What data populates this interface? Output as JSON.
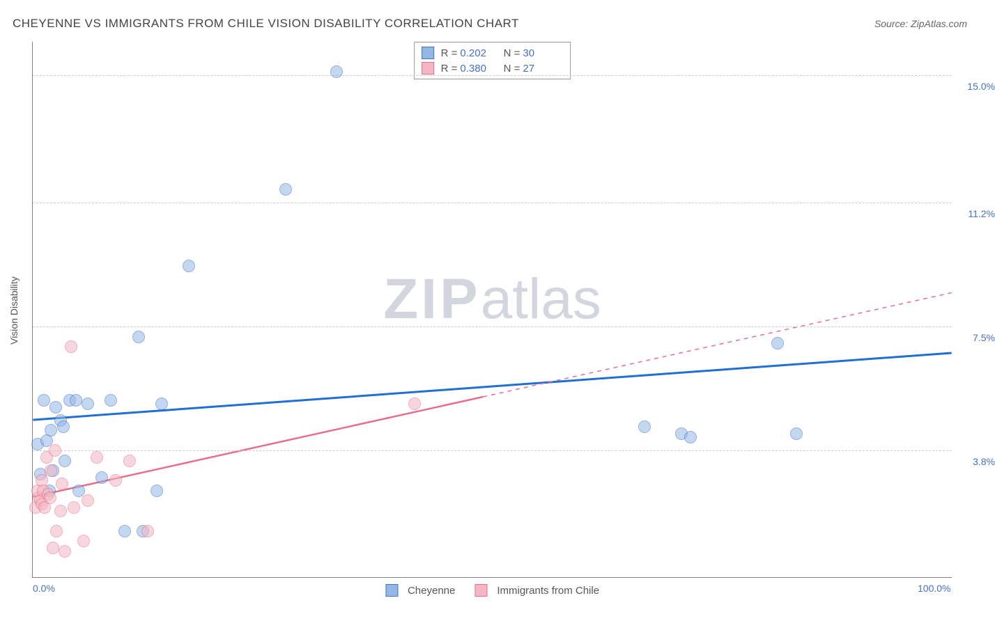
{
  "header": {
    "title": "CHEYENNE VS IMMIGRANTS FROM CHILE VISION DISABILITY CORRELATION CHART",
    "source_prefix": "Source: ",
    "source_name": "ZipAtlas.com"
  },
  "watermark": {
    "zip": "ZIP",
    "atlas": "atlas"
  },
  "chart": {
    "type": "scatter",
    "y_axis_label": "Vision Disability",
    "xlim": [
      0,
      100
    ],
    "ylim": [
      0,
      16
    ],
    "x_ticks": [
      {
        "value": 0,
        "label": "0.0%"
      },
      {
        "value": 100,
        "label": "100.0%"
      }
    ],
    "y_gridlines": [
      {
        "value": 3.8,
        "label": "3.8%"
      },
      {
        "value": 7.5,
        "label": "7.5%"
      },
      {
        "value": 11.2,
        "label": "11.2%"
      },
      {
        "value": 15.0,
        "label": "15.0%"
      }
    ],
    "background_color": "#ffffff",
    "grid_color": "#cccccc",
    "axis_color": "#808080",
    "tick_label_color": "#4472c4",
    "marker_radius": 9,
    "marker_opacity": 0.55,
    "series": [
      {
        "id": "cheyenne",
        "label": "Cheyenne",
        "R": "0.202",
        "N": "30",
        "fill": "#93b7e4",
        "stroke": "#4472c4",
        "trend": {
          "color": "#1f6fd4",
          "width": 3,
          "solid_from_x": 0,
          "solid_to_x": 100,
          "y_at_x0": 4.7,
          "y_at_x100": 6.7
        },
        "points": [
          {
            "x": 0.5,
            "y": 4.0
          },
          {
            "x": 0.8,
            "y": 3.1
          },
          {
            "x": 1.2,
            "y": 5.3
          },
          {
            "x": 1.5,
            "y": 4.1
          },
          {
            "x": 1.8,
            "y": 2.6
          },
          {
            "x": 2.0,
            "y": 4.4
          },
          {
            "x": 2.2,
            "y": 3.2
          },
          {
            "x": 2.5,
            "y": 5.1
          },
          {
            "x": 3.0,
            "y": 4.7
          },
          {
            "x": 3.3,
            "y": 4.5
          },
          {
            "x": 3.5,
            "y": 3.5
          },
          {
            "x": 4.0,
            "y": 5.3
          },
          {
            "x": 4.7,
            "y": 5.3
          },
          {
            "x": 5.0,
            "y": 2.6
          },
          {
            "x": 6.0,
            "y": 5.2
          },
          {
            "x": 7.5,
            "y": 3.0
          },
          {
            "x": 8.5,
            "y": 5.3
          },
          {
            "x": 10.0,
            "y": 1.4
          },
          {
            "x": 11.5,
            "y": 7.2
          },
          {
            "x": 12.0,
            "y": 1.4
          },
          {
            "x": 13.5,
            "y": 2.6
          },
          {
            "x": 14.0,
            "y": 5.2
          },
          {
            "x": 17.0,
            "y": 9.3
          },
          {
            "x": 27.5,
            "y": 11.6
          },
          {
            "x": 33.0,
            "y": 15.1
          },
          {
            "x": 66.5,
            "y": 4.5
          },
          {
            "x": 70.5,
            "y": 4.3
          },
          {
            "x": 71.5,
            "y": 4.2
          },
          {
            "x": 83.0,
            "y": 4.3
          },
          {
            "x": 81.0,
            "y": 7.0
          }
        ]
      },
      {
        "id": "chile",
        "label": "Immigrants from Chile",
        "R": "0.380",
        "N": "27",
        "fill": "#f4b6c2",
        "stroke": "#e76f8c",
        "trend": {
          "color": "#e76f8c",
          "width": 2.5,
          "solid_from_x": 0,
          "solid_to_x": 49,
          "y_at_x0": 2.4,
          "y_at_x100": 8.5
        },
        "points": [
          {
            "x": 0.3,
            "y": 2.1
          },
          {
            "x": 0.5,
            "y": 2.6
          },
          {
            "x": 0.7,
            "y": 2.4
          },
          {
            "x": 0.8,
            "y": 2.3
          },
          {
            "x": 1.0,
            "y": 2.9
          },
          {
            "x": 1.0,
            "y": 2.2
          },
          {
            "x": 1.1,
            "y": 2.6
          },
          {
            "x": 1.3,
            "y": 2.1
          },
          {
            "x": 1.5,
            "y": 3.6
          },
          {
            "x": 1.7,
            "y": 2.5
          },
          {
            "x": 1.9,
            "y": 2.4
          },
          {
            "x": 2.0,
            "y": 3.2
          },
          {
            "x": 2.2,
            "y": 0.9
          },
          {
            "x": 2.4,
            "y": 3.8
          },
          {
            "x": 2.6,
            "y": 1.4
          },
          {
            "x": 3.0,
            "y": 2.0
          },
          {
            "x": 3.2,
            "y": 2.8
          },
          {
            "x": 3.5,
            "y": 0.8
          },
          {
            "x": 4.2,
            "y": 6.9
          },
          {
            "x": 4.5,
            "y": 2.1
          },
          {
            "x": 5.5,
            "y": 1.1
          },
          {
            "x": 6.0,
            "y": 2.3
          },
          {
            "x": 7.0,
            "y": 3.6
          },
          {
            "x": 9.0,
            "y": 2.9
          },
          {
            "x": 10.5,
            "y": 3.5
          },
          {
            "x": 12.5,
            "y": 1.4
          },
          {
            "x": 41.5,
            "y": 5.2
          }
        ]
      }
    ]
  },
  "legend_bottom": [
    {
      "series": "cheyenne"
    },
    {
      "series": "chile"
    }
  ]
}
